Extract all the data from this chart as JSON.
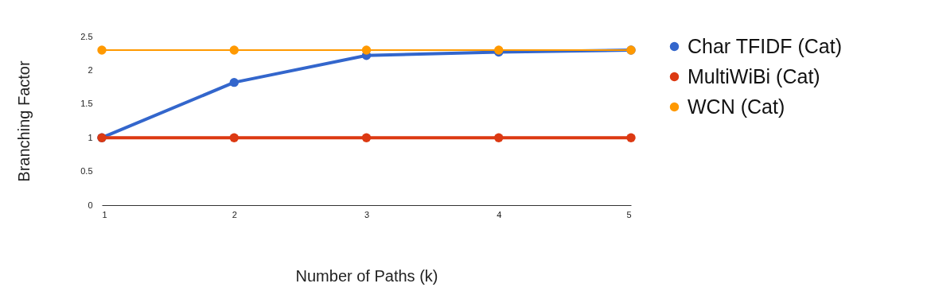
{
  "chart_data": {
    "type": "line",
    "xlabel": "Number of Paths (k)",
    "ylabel": "Branching Factor",
    "x": [
      1,
      2,
      3,
      4,
      5
    ],
    "xlim": [
      1,
      5
    ],
    "xticks": [
      1,
      2,
      3,
      4,
      5
    ],
    "ylim": [
      0,
      2.5
    ],
    "yticks": [
      0,
      0.5,
      1,
      1.5,
      2,
      2.5
    ],
    "series": [
      {
        "name": "Char TFIDF (Cat)",
        "color": "#3366cc",
        "values": [
          1,
          1.82,
          2.22,
          2.27,
          2.3
        ]
      },
      {
        "name": "MultiWiBi (Cat)",
        "color": "#dc3912",
        "values": [
          1,
          1,
          1,
          1,
          1
        ]
      },
      {
        "name": "WCN (Cat)",
        "color": "#ff9900",
        "values": [
          2.3,
          2.3,
          2.3,
          2.3,
          2.3
        ]
      }
    ],
    "marker": "circle",
    "line_style": "solid",
    "grid": false,
    "legend": "right"
  }
}
